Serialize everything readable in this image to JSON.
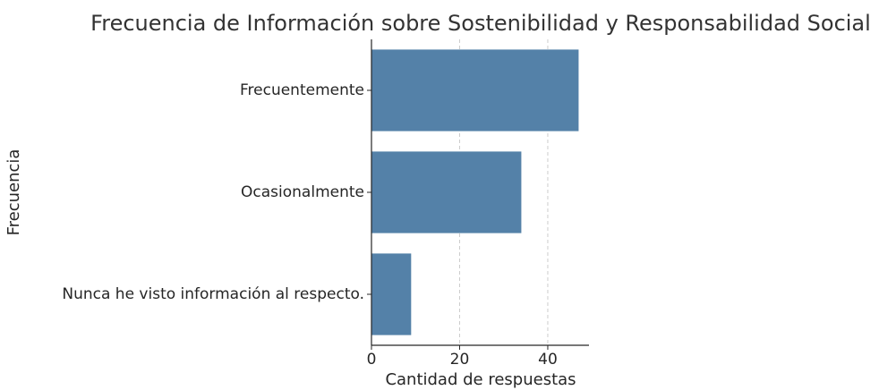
{
  "chart_data": {
    "type": "barh",
    "title": "Frecuencia de Información sobre Sostenibilidad y Responsabilidad Social",
    "categories": [
      "Frecuentemente",
      "Ocasionalmente",
      "Nunca he visto información al respecto."
    ],
    "values": [
      47,
      34,
      9
    ],
    "color": "#5481a8",
    "xlabel": "Cantidad de respuestas",
    "ylabel": "Frecuencia",
    "xlim": [
      0,
      49.35
    ],
    "xticks": [
      0,
      20,
      40
    ],
    "grid": true
  }
}
